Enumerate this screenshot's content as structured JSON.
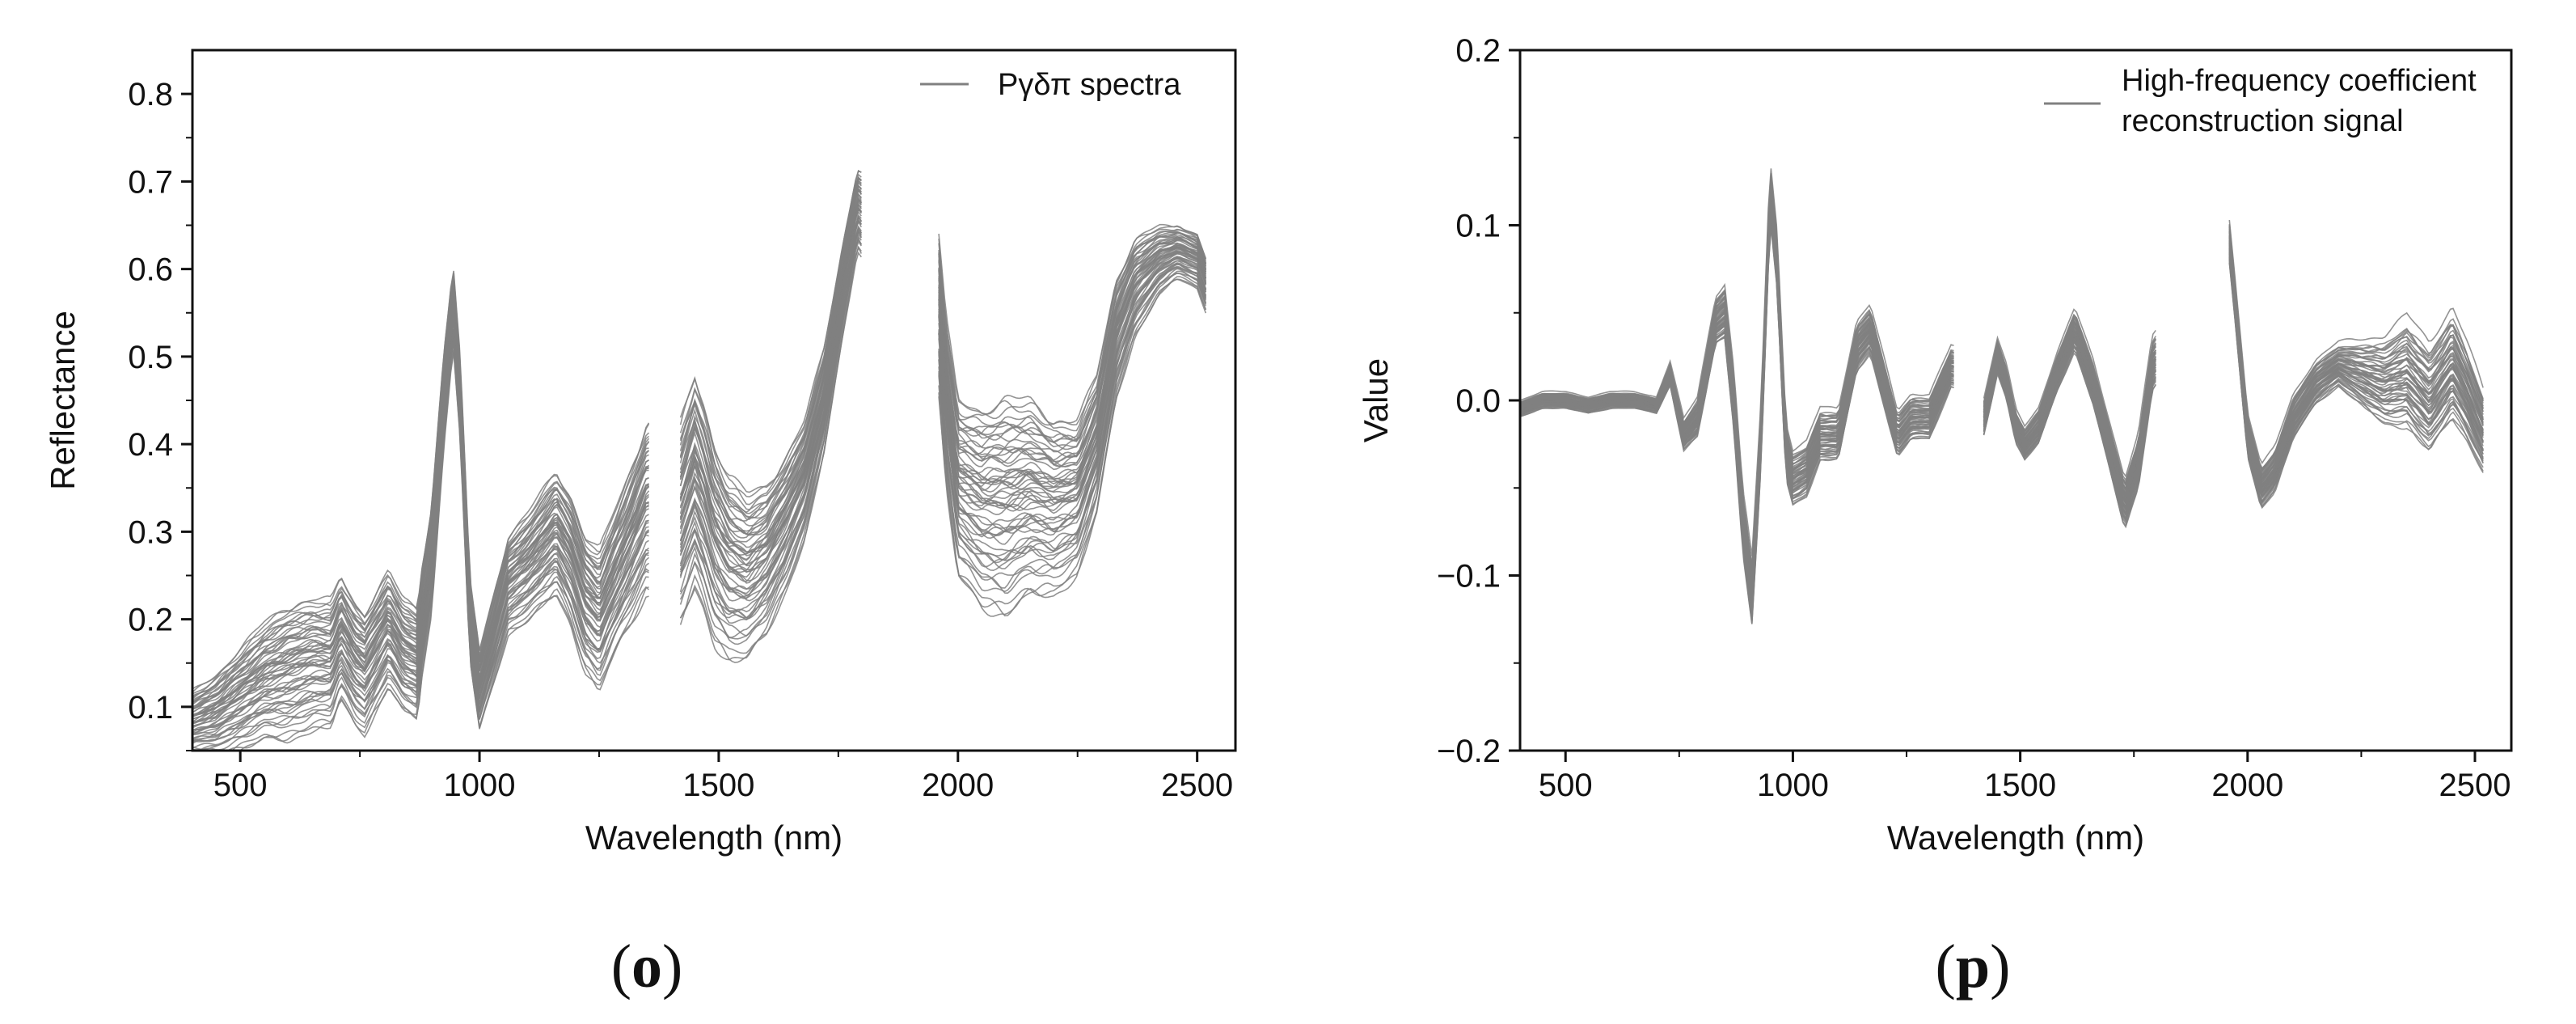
{
  "chart_data": [
    {
      "type": "line",
      "panel": "o",
      "caption": "(o)",
      "title": "",
      "xlabel": "Wavelength (nm)",
      "ylabel": "Reflectance",
      "xlim": [
        400,
        2580
      ],
      "ylim": [
        0.05,
        0.85
      ],
      "xticks": [
        500,
        1000,
        1500,
        2000,
        2500
      ],
      "xtick_labels": [
        "500",
        "1000",
        "1500",
        "2000",
        "2500"
      ],
      "yticks": [
        0.1,
        0.2,
        0.3,
        0.4,
        0.5,
        0.6,
        0.7,
        0.8
      ],
      "ytick_labels": [
        "0.1",
        "0.2",
        "0.3",
        "0.4",
        "0.5",
        "0.6",
        "0.7",
        "0.8"
      ],
      "legend": {
        "label": "Ργδπ spectra",
        "placement": "top-right"
      },
      "line_color": "#808080",
      "n_samples": 60,
      "gaps_nm": [
        [
          1355,
          1420
        ],
        [
          1800,
          1960
        ]
      ],
      "mean_profile": {
        "x": [
          400,
          450,
          500,
          550,
          600,
          650,
          690,
          710,
          740,
          760,
          790,
          810,
          840,
          870,
          880,
          900,
          925,
          945,
          960,
          980,
          1000,
          1030,
          1060,
          1100,
          1130,
          1160,
          1190,
          1220,
          1250,
          1280,
          1320,
          1350,
          1420,
          1450,
          1470,
          1490,
          1520,
          1560,
          1600,
          1640,
          1680,
          1720,
          1760,
          1790,
          1960,
          1975,
          2000,
          2050,
          2100,
          2150,
          2200,
          2250,
          2290,
          2330,
          2370,
          2420,
          2460,
          2500,
          2520
        ],
        "values": [
          0.08,
          0.09,
          0.11,
          0.13,
          0.14,
          0.15,
          0.15,
          0.18,
          0.15,
          0.14,
          0.17,
          0.19,
          0.16,
          0.15,
          0.2,
          0.27,
          0.45,
          0.56,
          0.45,
          0.2,
          0.12,
          0.18,
          0.24,
          0.26,
          0.28,
          0.3,
          0.27,
          0.22,
          0.2,
          0.24,
          0.29,
          0.33,
          0.31,
          0.36,
          0.33,
          0.29,
          0.26,
          0.25,
          0.27,
          0.31,
          0.36,
          0.45,
          0.58,
          0.67,
          0.55,
          0.45,
          0.35,
          0.33,
          0.33,
          0.34,
          0.33,
          0.34,
          0.4,
          0.52,
          0.58,
          0.61,
          0.62,
          0.61,
          0.58
        ]
      },
      "spread_profile": {
        "x": [
          400,
          600,
          900,
          945,
          1000,
          1150,
          1300,
          1450,
          1600,
          1790,
          1960,
          2100,
          2300,
          2450,
          2520
        ],
        "values": [
          0.025,
          0.05,
          0.04,
          0.03,
          0.03,
          0.045,
          0.055,
          0.08,
          0.055,
          0.03,
          0.06,
          0.08,
          0.05,
          0.02,
          0.02
        ]
      }
    },
    {
      "type": "line",
      "panel": "p",
      "caption": "(p)",
      "title": "",
      "xlabel": "Wavelength (nm)",
      "ylabel": "Value",
      "xlim": [
        400,
        2580
      ],
      "ylim": [
        -0.2,
        0.2
      ],
      "xticks": [
        500,
        1000,
        1500,
        2000,
        2500
      ],
      "xtick_labels": [
        "500",
        "1000",
        "1500",
        "2000",
        "2500"
      ],
      "yticks": [
        -0.2,
        -0.1,
        0.0,
        0.1,
        0.2
      ],
      "ytick_labels": [
        "−0.2",
        "−0.1",
        "0.0",
        "0.1",
        "0.2"
      ],
      "legend": {
        "label_lines": [
          "High-frequency coefficient",
          "reconstruction signal"
        ],
        "placement": "top-right"
      },
      "line_color": "#808080",
      "n_samples": 60,
      "gaps_nm": [
        [
          1355,
          1420
        ],
        [
          1800,
          1960
        ]
      ],
      "mean_profile": {
        "x": [
          400,
          450,
          500,
          550,
          600,
          650,
          700,
          730,
          760,
          790,
          830,
          850,
          870,
          890,
          910,
          930,
          950,
          965,
          985,
          1000,
          1030,
          1060,
          1100,
          1140,
          1170,
          1200,
          1230,
          1260,
          1300,
          1350,
          1420,
          1450,
          1470,
          1490,
          1510,
          1540,
          1580,
          1620,
          1660,
          1700,
          1730,
          1760,
          1790,
          1960,
          1975,
          2000,
          2030,
          2060,
          2100,
          2150,
          2200,
          2250,
          2300,
          2350,
          2400,
          2450,
          2480,
          2520
        ],
        "values": [
          -0.005,
          0.0,
          0.0,
          -0.003,
          0.0,
          0.0,
          -0.003,
          0.015,
          -0.02,
          -0.01,
          0.045,
          0.05,
          0.0,
          -0.07,
          -0.11,
          -0.02,
          0.12,
          0.08,
          -0.03,
          -0.045,
          -0.04,
          -0.02,
          -0.02,
          0.03,
          0.04,
          0.01,
          -0.02,
          -0.01,
          -0.01,
          0.02,
          -0.01,
          0.025,
          0.01,
          -0.015,
          -0.025,
          -0.015,
          0.015,
          0.04,
          0.01,
          -0.03,
          -0.06,
          -0.035,
          0.02,
          0.09,
          0.05,
          -0.02,
          -0.05,
          -0.04,
          -0.01,
          0.01,
          0.02,
          0.015,
          0.01,
          0.015,
          0.0,
          0.02,
          0.005,
          -0.02
        ]
      },
      "spread_profile": {
        "x": [
          400,
          700,
          900,
          1000,
          1300,
          1500,
          1790,
          1960,
          2200,
          2350,
          2450,
          2520
        ],
        "values": [
          0.003,
          0.003,
          0.012,
          0.01,
          0.008,
          0.006,
          0.01,
          0.008,
          0.008,
          0.02,
          0.02,
          0.015
        ]
      }
    }
  ]
}
